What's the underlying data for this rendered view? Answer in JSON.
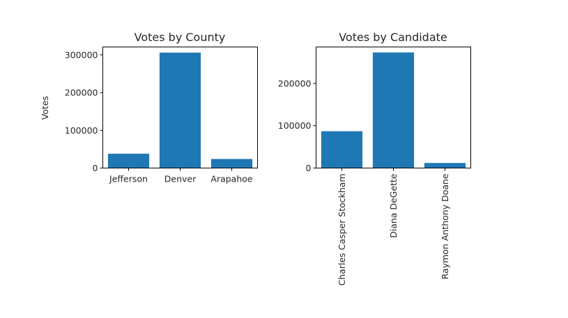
{
  "chart_data": [
    {
      "type": "bar",
      "title": "Votes by County",
      "xlabel": "",
      "ylabel": "Votes",
      "categories": [
        "Jefferson",
        "Denver",
        "Arapahoe"
      ],
      "values": [
        38000,
        306000,
        24000
      ],
      "ylim": [
        0,
        321000
      ],
      "yticks": [
        0,
        100000,
        200000,
        300000
      ],
      "bar_color": "#1f77b4",
      "xtick_rotation": 0,
      "grid": false
    },
    {
      "type": "bar",
      "title": "Votes by Candidate",
      "xlabel": "",
      "ylabel": "",
      "categories": [
        "Charles Casper Stockham",
        "Diana DeGette",
        "Raymon Anthony Doane"
      ],
      "values": [
        87000,
        273000,
        12000
      ],
      "ylim": [
        0,
        286000
      ],
      "yticks": [
        0,
        100000,
        200000
      ],
      "bar_color": "#1f77b4",
      "xtick_rotation": 90,
      "grid": false
    }
  ]
}
